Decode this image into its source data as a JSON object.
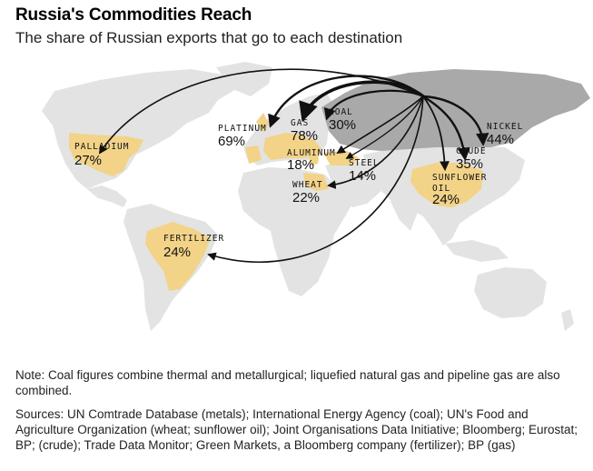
{
  "header": {
    "title": "Russia's Commodities Reach",
    "subtitle": "The share of Russian exports that go to each destination"
  },
  "map": {
    "colors": {
      "ocean": "#ffffff",
      "land": "#e3e3e3",
      "russia": "#a9a9a9",
      "destination": "#f2d388",
      "arrow": "#111111"
    },
    "commodities": [
      {
        "id": "palladium",
        "name": "PALLADIUM",
        "share": "27%"
      },
      {
        "id": "platinum",
        "name": "PLATINUM",
        "share": "69%"
      },
      {
        "id": "gas",
        "name": "GAS",
        "share": "78%"
      },
      {
        "id": "coal",
        "name": "COAL",
        "share": "30%"
      },
      {
        "id": "aluminum",
        "name": "ALUMINUM",
        "share": "18%"
      },
      {
        "id": "steel",
        "name": "STEEL",
        "share": "14%"
      },
      {
        "id": "wheat",
        "name": "WHEAT",
        "share": "22%"
      },
      {
        "id": "nickel",
        "name": "NICKEL",
        "share": "44%"
      },
      {
        "id": "crude",
        "name": "CRUDE",
        "share": "35%"
      },
      {
        "id": "sunflower_oil",
        "name": "SUNFLOWER OIL",
        "name_line1": "SUNFLOWER",
        "name_line2": "OIL",
        "share": "24%"
      },
      {
        "id": "fertilizer",
        "name": "FERTILIZER",
        "share": "24%"
      }
    ]
  },
  "footer": {
    "note": "Note: Coal figures combine thermal and metallurgical; liquefied natural gas and pipeline gas are also combined.",
    "sources": "Sources: UN Comtrade Database (metals); International Energy Agency (coal); UN's Food and Agriculture Organization (wheat; sunflower oil); Joint Organisations Data Initiative; Bloomberg; Eurostat; BP; (crude); Trade Data Monitor; Green Markets, a Bloomberg company (fertilizer); BP (gas)"
  }
}
